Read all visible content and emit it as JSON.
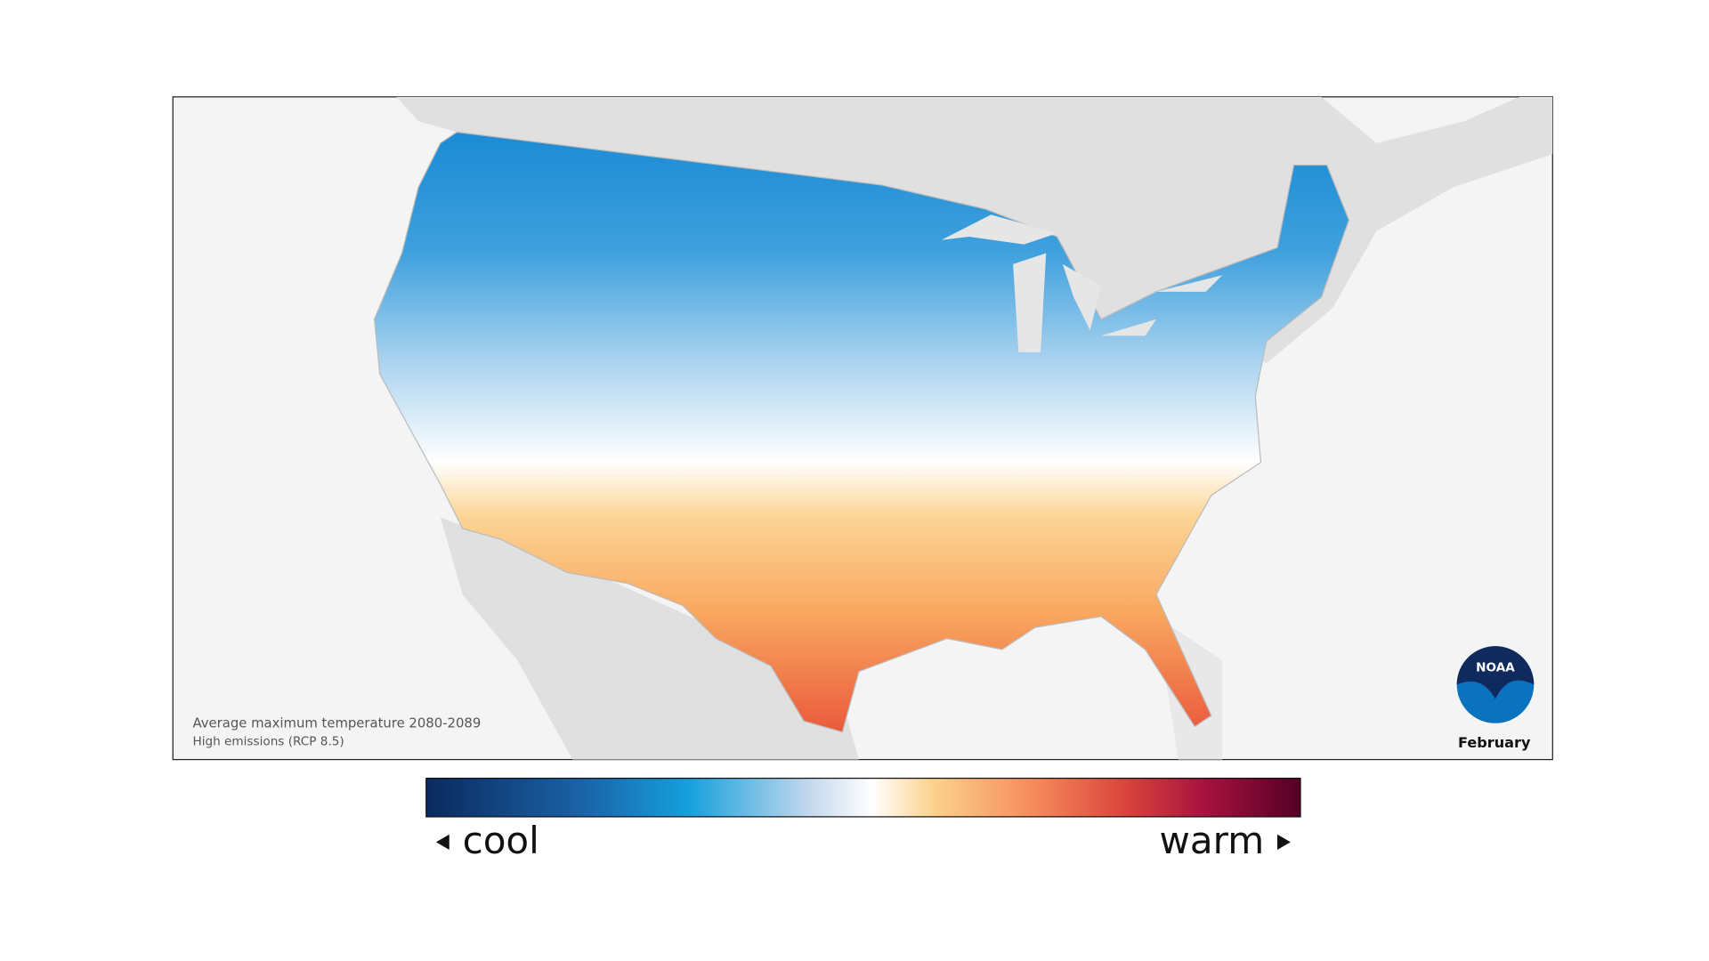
{
  "map": {
    "caption": "Average maximum temperature 2080-2089",
    "scenario": "High emissions (RCP 8.5)",
    "month": "February"
  },
  "logo": {
    "text": "NOAA"
  },
  "legend": {
    "low_label": "cool",
    "high_label": "warm"
  }
}
